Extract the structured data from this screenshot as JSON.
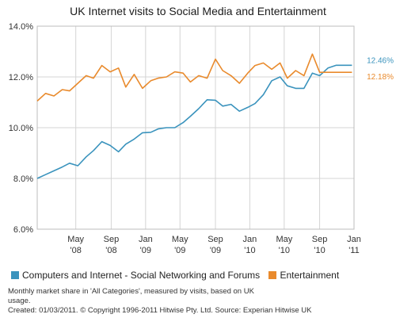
{
  "chart_data": {
    "type": "line",
    "title": "UK Internet visits to Social Media and Entertainment",
    "x_tick_labels": [
      {
        "month": "May",
        "year": "'08",
        "x": 2008.33
      },
      {
        "month": "Sep",
        "year": "'08",
        "x": 2008.67
      },
      {
        "month": "Jan",
        "year": "'09",
        "x": 2009.0
      },
      {
        "month": "May",
        "year": "'09",
        "x": 2009.33
      },
      {
        "month": "Sep",
        "year": "'09",
        "x": 2009.67
      },
      {
        "month": "Jan",
        "year": "'10",
        "x": 2010.0
      },
      {
        "month": "May",
        "year": "'10",
        "x": 2010.33
      },
      {
        "month": "Sep",
        "year": "'10",
        "x": 2010.67
      },
      {
        "month": "Jan",
        "year": "'11",
        "x": 2011.0
      }
    ],
    "xlim": [
      2007.96,
      2011.0
    ],
    "ylim": [
      6.0,
      14.0
    ],
    "y_ticks": [
      6.0,
      8.0,
      10.0,
      12.0,
      14.0
    ],
    "y_tick_labels": [
      "6.0%",
      "8.0%",
      "10.0%",
      "12.0%",
      "14.0%"
    ],
    "grid": true,
    "legend_position": "bottom",
    "x": [
      2007.96,
      2008.04,
      2008.12,
      2008.2,
      2008.27,
      2008.35,
      2008.43,
      2008.5,
      2008.58,
      2008.66,
      2008.74,
      2008.81,
      2008.89,
      2008.97,
      2009.05,
      2009.12,
      2009.2,
      2009.28,
      2009.36,
      2009.43,
      2009.51,
      2009.59,
      2009.67,
      2009.74,
      2009.82,
      2009.9,
      2009.98,
      2010.05,
      2010.13,
      2010.21,
      2010.29,
      2010.36,
      2010.44,
      2010.52,
      2010.6,
      2010.67,
      2010.75,
      2010.83,
      2010.91,
      2010.98
    ],
    "series": [
      {
        "name": "Computers and Internet - Social Networking and Forums",
        "color": "#3a93bd",
        "end_label": "12.46%",
        "values": [
          8.0,
          8.15,
          8.3,
          8.45,
          8.6,
          8.5,
          8.85,
          9.1,
          9.45,
          9.3,
          9.05,
          9.35,
          9.55,
          9.8,
          9.82,
          9.95,
          10.0,
          10.0,
          10.2,
          10.45,
          10.75,
          11.1,
          11.08,
          10.85,
          10.92,
          10.65,
          10.8,
          10.95,
          11.3,
          11.85,
          12.0,
          11.65,
          11.55,
          11.55,
          12.15,
          12.05,
          12.35,
          12.46,
          12.46,
          12.46
        ]
      },
      {
        "name": "Entertainment",
        "color": "#e98a2c",
        "end_label": "12.18%",
        "values": [
          11.05,
          11.35,
          11.25,
          11.5,
          11.45,
          11.75,
          12.05,
          11.95,
          12.45,
          12.2,
          12.35,
          11.6,
          12.1,
          11.55,
          11.85,
          11.95,
          12.0,
          12.2,
          12.15,
          11.8,
          12.05,
          11.95,
          12.7,
          12.25,
          12.05,
          11.75,
          12.15,
          12.45,
          12.55,
          12.3,
          12.55,
          11.95,
          12.25,
          12.05,
          12.9,
          12.18,
          12.18,
          12.18,
          12.18,
          12.18
        ]
      }
    ]
  },
  "notes": {
    "line1": "Monthly market share in 'All Categories', measured by visits, based on UK",
    "line2": "usage.",
    "line3": "Created: 01/03/2011. © Copyright 1996-2011 Hitwise Pty. Ltd.    Source: Experian Hitwise UK"
  }
}
